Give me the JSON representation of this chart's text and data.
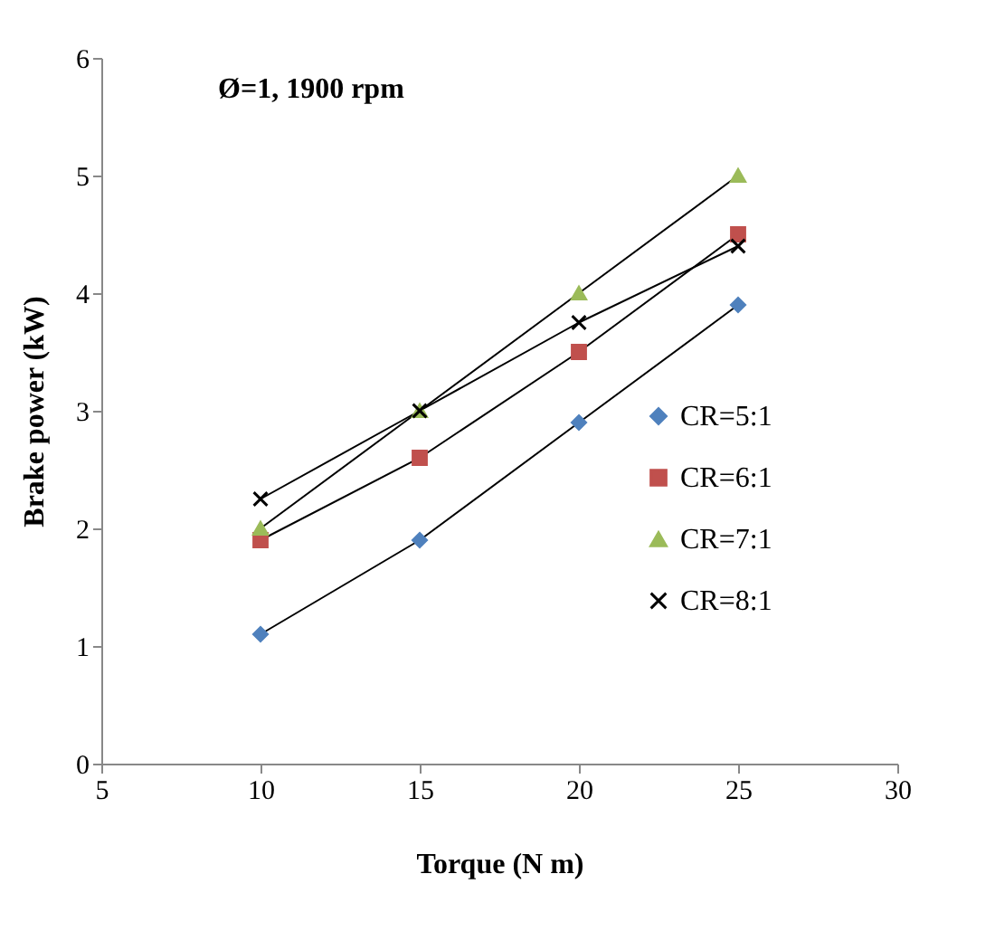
{
  "chart_data": {
    "type": "line",
    "title": "Ø=1, 1900 rpm",
    "xlabel": "Torque (N m)",
    "ylabel": "Brake power (kW)",
    "x": [
      10,
      15,
      20,
      25
    ],
    "xlim": [
      5,
      30
    ],
    "xticks": [
      5,
      10,
      15,
      20,
      25,
      30
    ],
    "ylim": [
      0,
      6
    ],
    "yticks": [
      0,
      1,
      2,
      3,
      4,
      5,
      6
    ],
    "grid": false,
    "legend": "right",
    "series": [
      {
        "name": "CR=5:1",
        "color": "#4f81bd",
        "marker": "diamond",
        "values": [
          1.1,
          1.9,
          2.9,
          3.9
        ]
      },
      {
        "name": "CR=6:1",
        "color": "#c0504d",
        "marker": "square",
        "values": [
          1.9,
          2.6,
          3.5,
          4.5
        ]
      },
      {
        "name": "CR=7:1",
        "color": "#9bbb59",
        "marker": "triangle",
        "values": [
          2.0,
          3.0,
          4.0,
          5.0
        ]
      },
      {
        "name": "CR=8:1",
        "color": "#000000",
        "marker": "cross",
        "values": [
          2.25,
          3.0,
          3.75,
          4.4
        ]
      }
    ]
  }
}
